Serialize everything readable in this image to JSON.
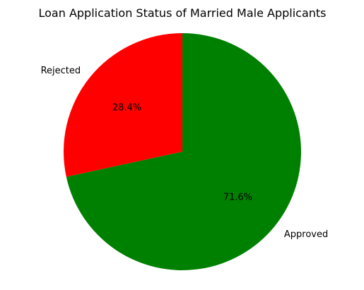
{
  "chart_data": {
    "type": "pie",
    "title": "Loan Application Status of Married Male Applicants",
    "slices": [
      {
        "label": "Rejected",
        "value": 28.4,
        "pct_label": "28.4%",
        "color": "#ff0000"
      },
      {
        "label": "Approved",
        "value": 71.6,
        "pct_label": "71.6%",
        "color": "#008000"
      }
    ],
    "start_angle_deg": 90,
    "direction": "counterclockwise",
    "legend": "none"
  }
}
